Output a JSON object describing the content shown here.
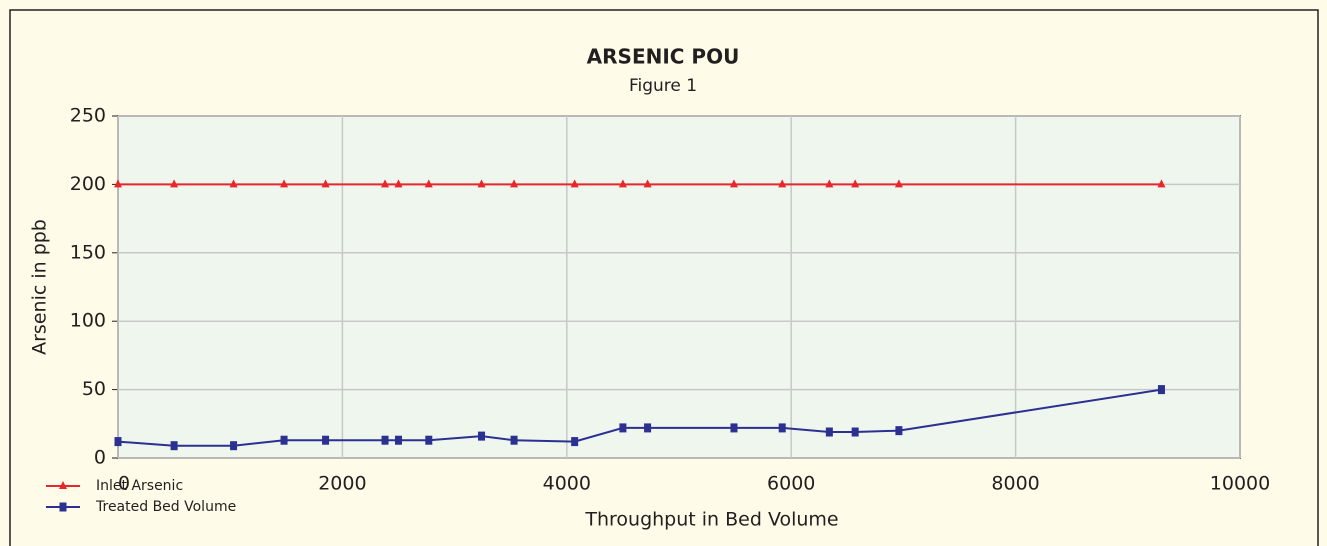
{
  "chart_data": {
    "type": "line",
    "title": "ARSENIC POU",
    "subtitle": "Figure 1",
    "x_label": "Throughput in Bed Volume",
    "y_label": "Arsenic in ppb",
    "xlim": [
      0,
      10000
    ],
    "xticks": [
      0,
      2000,
      4000,
      6000,
      8000,
      10000
    ],
    "ylim": [
      0,
      250
    ],
    "yticks": [
      0,
      50,
      100,
      150,
      200,
      250
    ],
    "grid": true,
    "legend": "bottom-left",
    "series": [
      {
        "name": "Inlet Arsenic",
        "color": "#e8262b",
        "marker": "triangle",
        "x": [
          0,
          500,
          1030,
          1480,
          1850,
          2380,
          2500,
          2770,
          3240,
          3530,
          4070,
          4500,
          4720,
          5490,
          5920,
          6340,
          6570,
          6960,
          9300
        ],
        "values": [
          200,
          200,
          200,
          200,
          200,
          200,
          200,
          200,
          200,
          200,
          200,
          200,
          200,
          200,
          200,
          200,
          200,
          200,
          200
        ]
      },
      {
        "name": "Treated Bed Volume",
        "color": "#2b3091",
        "marker": "square",
        "x": [
          0,
          500,
          1030,
          1480,
          1850,
          2380,
          2500,
          2770,
          3240,
          3530,
          4070,
          4500,
          4720,
          5490,
          5920,
          6340,
          6570,
          6960,
          9300
        ],
        "values": [
          12,
          9,
          9,
          13,
          13,
          13,
          13,
          13,
          16,
          13,
          12,
          22,
          22,
          22,
          22,
          19,
          19,
          20,
          50
        ]
      }
    ]
  }
}
